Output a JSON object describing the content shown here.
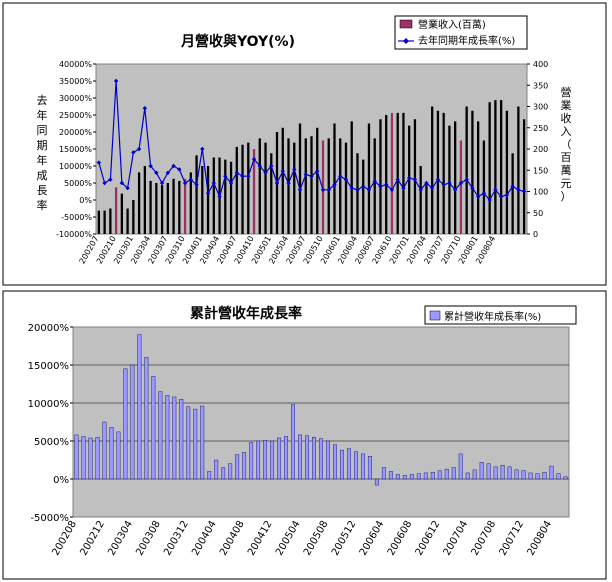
{
  "chart_data": [
    {
      "type": "bar+line",
      "title": "月營收與YOY(%)",
      "legend": {
        "placement": "top-right",
        "bar_label": "營業收入(百萬)",
        "line_label": "去年同期年成長率(%)"
      },
      "y_left": {
        "min": -10000,
        "max": 40000,
        "step": 5000,
        "ticks": [
          "40000%",
          "35000%",
          "30000%",
          "25000%",
          "20000%",
          "15000%",
          "10000%",
          "5000%",
          "0%",
          "-5000%",
          "-10000%"
        ]
      },
      "y_right": {
        "min": 0,
        "max": 400,
        "step": 50,
        "ticks": [
          "400",
          "350",
          "300",
          "250",
          "200",
          "150",
          "100",
          "50",
          "0"
        ],
        "label": "營業收入（百萬元）"
      },
      "x_tick_labels": [
        "200207",
        "200210",
        "200301",
        "200304",
        "200307",
        "200310",
        "200401",
        "200404",
        "200407",
        "200410",
        "200501",
        "200504",
        "200507",
        "200510",
        "200601",
        "200604",
        "200607",
        "200610",
        "200701",
        "200704",
        "200707",
        "200710",
        "200801",
        "200804"
      ],
      "grid": false,
      "bar_series": {
        "name": "營業收入(百萬)",
        "values": [
          55,
          55,
          60,
          110,
          95,
          60,
          80,
          145,
          160,
          125,
          120,
          115,
          120,
          130,
          125,
          130,
          145,
          185,
          160,
          160,
          180,
          180,
          175,
          170,
          205,
          210,
          215,
          200,
          225,
          215,
          190,
          240,
          250,
          225,
          215,
          260,
          225,
          230,
          250,
          220,
          225,
          260,
          225,
          215,
          265,
          190,
          175,
          260,
          225,
          270,
          280,
          285,
          285,
          285,
          255,
          270,
          160,
          120,
          300,
          290,
          285,
          255,
          265,
          220,
          300,
          290,
          265,
          220,
          310,
          315,
          315,
          290,
          190,
          300,
          270
        ],
        "highlight_every": 12,
        "highlight_offset": 3
      },
      "line_series": {
        "name": "去年同期年成長率(%)",
        "values": [
          11000,
          5000,
          6000,
          35000,
          5000,
          3500,
          14000,
          15000,
          27000,
          10000,
          8000,
          5000,
          8000,
          10000,
          9000,
          5000,
          6000,
          4500,
          15000,
          2000,
          5000,
          1000,
          7000,
          5000,
          8000,
          7000,
          7000,
          12000,
          10000,
          8000,
          10000,
          5000,
          8500,
          5000,
          9000,
          3000,
          7500,
          7000,
          8500,
          3000,
          3000,
          4500,
          7000,
          6000,
          3500,
          3000,
          4000,
          3000,
          5500,
          4000,
          4500,
          3000,
          6000,
          3500,
          6500,
          6000,
          3000,
          5000,
          3500,
          6000,
          4500,
          5000,
          3000,
          5000,
          6000,
          3500,
          1000,
          2000,
          0,
          3000,
          1000,
          1500,
          4000,
          3000,
          2500
        ]
      }
    },
    {
      "type": "bar",
      "title": "累計營收年成長率",
      "legend": {
        "placement": "top-right",
        "label": "累計營收年成長率(%)"
      },
      "y": {
        "min": -5000,
        "max": 20000,
        "step": 5000,
        "ticks": [
          "20000%",
          "15000%",
          "10000%",
          "5000%",
          "0%",
          "-5000%"
        ]
      },
      "x_tick_labels": [
        "200208",
        "200212",
        "200304",
        "200308",
        "200312",
        "200404",
        "200408",
        "200412",
        "200504",
        "200508",
        "200512",
        "200604",
        "200608",
        "200612",
        "200704",
        "200708",
        "200712",
        "200804"
      ],
      "grid": true,
      "series": [
        {
          "name": "累計營收年成長率(%)",
          "values": [
            5800,
            5600,
            5400,
            5500,
            7500,
            6800,
            6200,
            14500,
            15000,
            19000,
            16000,
            13500,
            11500,
            11000,
            10800,
            10500,
            9500,
            9200,
            9600,
            1000,
            2500,
            1500,
            2000,
            3200,
            3500,
            4800,
            5000,
            5100,
            5000,
            5400,
            5600,
            9800,
            5800,
            5700,
            5500,
            5300,
            5000,
            4500,
            3800,
            4000,
            3600,
            3300,
            3000,
            -800,
            1500,
            1000,
            600,
            500,
            600,
            700,
            800,
            900,
            1100,
            1300,
            1500,
            3300,
            800,
            1200,
            2200,
            2000,
            1600,
            1800,
            1600,
            1200,
            1100,
            800,
            700,
            900,
            1700,
            700,
            300
          ]
        }
      ]
    }
  ]
}
